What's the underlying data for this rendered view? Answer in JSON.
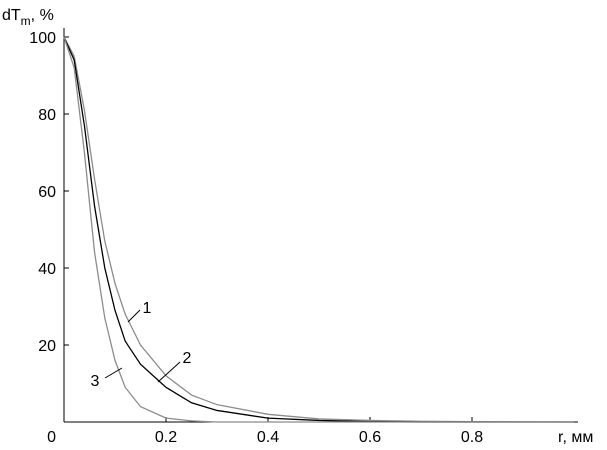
{
  "chart_data": {
    "type": "line",
    "y_label": [
      "dT",
      "m",
      ", %"
    ],
    "x_label": "r, мм",
    "x": [
      0,
      0.02,
      0.04,
      0.06,
      0.08,
      0.1,
      0.12,
      0.15,
      0.2,
      0.25,
      0.3,
      0.4,
      0.5,
      0.6,
      0.7,
      0.8,
      1.0
    ],
    "series": [
      {
        "name": "1",
        "color": "#8c8c8c",
        "values": [
          100,
          95,
          81,
          63,
          47,
          36,
          28,
          20,
          12,
          7,
          4.5,
          2,
          0.8,
          0.4,
          0.2,
          0.1,
          0
        ]
      },
      {
        "name": "2",
        "color": "#000000",
        "values": [
          100,
          94,
          77,
          56,
          40,
          29,
          21,
          15,
          9,
          5,
          3,
          1,
          0.4,
          0.1,
          0,
          0,
          0
        ]
      },
      {
        "name": "3",
        "color": "#8c8c8c",
        "values": [
          100,
          92,
          70,
          44,
          27,
          16,
          9,
          4,
          1,
          0.3,
          0,
          0,
          0,
          0,
          0,
          0,
          0
        ]
      }
    ],
    "xlim": [
      0,
      1.0
    ],
    "ylim": [
      0,
      100
    ],
    "xticks": [
      0,
      0.2,
      0.4,
      0.6,
      0.8
    ],
    "yticks": [
      20,
      40,
      60,
      80,
      100
    ]
  }
}
